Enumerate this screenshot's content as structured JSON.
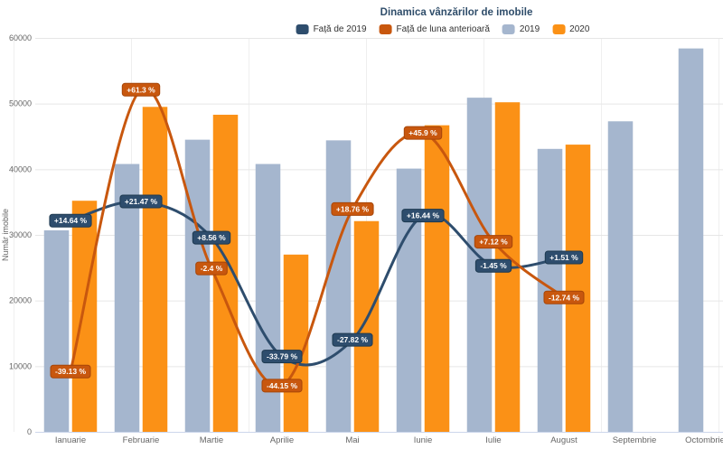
{
  "title": "Dinamica vânzărilor de imobile",
  "legend": {
    "items": [
      {
        "name": "fata-de-2019",
        "label": "Față de 2019",
        "color": "#2e4d6d"
      },
      {
        "name": "fata-de-luna-anterioara",
        "label": "Față de luna anterioară",
        "color": "#c8570e"
      },
      {
        "name": "2019",
        "label": "2019",
        "color": "#a5b6ce"
      },
      {
        "name": "2020",
        "label": "2020",
        "color": "#fb9116"
      }
    ]
  },
  "chart_data": {
    "type": "combo-bar-spline",
    "title": "Dinamica vânzărilor de imobile",
    "xlabel": "",
    "ylabel": "Număr imobile",
    "ylim": [
      0,
      60000
    ],
    "yticks": [
      "0",
      "10000",
      "20000",
      "30000",
      "40000",
      "50000",
      "60000"
    ],
    "grid": true,
    "legend_position": "top-center",
    "categories": [
      "Ianuarie",
      "Februarie",
      "Martie",
      "Aprilie",
      "Mai",
      "Iunie",
      "Iulie",
      "August",
      "Septembrie",
      "Octombrie"
    ],
    "series": [
      {
        "name": "2019",
        "type": "bar",
        "color": "#a5b6ce",
        "values": [
          30700,
          40800,
          44500,
          40800,
          44400,
          40100,
          50900,
          43100,
          47300,
          58400
        ]
      },
      {
        "name": "2020",
        "type": "bar",
        "color": "#fb9116",
        "values": [
          35200,
          49500,
          48300,
          27000,
          32100,
          46700,
          50200,
          43750,
          null,
          null
        ]
      },
      {
        "name": "Față de 2019",
        "type": "spline",
        "color": "#2e4d6d",
        "label_border": "#1d3950",
        "values_pct": [
          14.64,
          21.47,
          8.56,
          -33.79,
          -27.82,
          16.44,
          -1.45,
          1.51,
          null,
          null
        ],
        "labels": [
          "+14.64 %",
          "+21.47 %",
          "+8.56 %",
          "-33.79 %",
          "-27.82 %",
          "+16.44 %",
          "-1.45 %",
          "+1.51 %",
          null,
          null
        ]
      },
      {
        "name": "Față de luna anterioară",
        "type": "spline",
        "color": "#c8570e",
        "label_border": "#a64508",
        "values_pct": [
          -39.13,
          61.3,
          -2.4,
          -44.15,
          18.76,
          45.9,
          7.12,
          -12.74,
          null,
          null
        ],
        "labels": [
          "-39.13 %",
          "+61.3 %",
          "-2.4 %",
          "-44.15 %",
          "+18.76 %",
          "+45.9 %",
          "+7.12 %",
          "-12.74 %",
          null,
          null
        ]
      }
    ]
  }
}
